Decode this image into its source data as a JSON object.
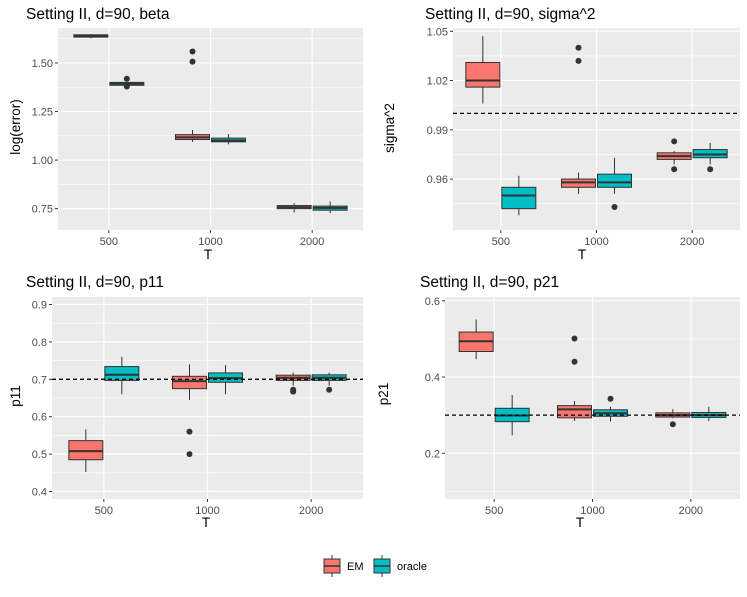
{
  "colors": {
    "EM": "#f8766d",
    "oracle": "#00bfc4",
    "panel_bg": "#ebebeb",
    "grid": "#ffffff",
    "box_line": "#333333"
  },
  "legend": {
    "position": "bottom",
    "entries": [
      {
        "key": "EM",
        "label": "EM"
      },
      {
        "key": "oracle",
        "label": "oracle"
      }
    ]
  },
  "chart_data": [
    {
      "type": "box",
      "title": "Setting II, d=90, beta",
      "xlabel": "T",
      "ylabel": "log(error)",
      "categories": [
        "500",
        "1000",
        "2000"
      ],
      "ylim": [
        0.64,
        1.68
      ],
      "yticks": [
        0.75,
        1.0,
        1.25,
        1.5
      ],
      "ytick_labels": [
        "0.75",
        "1.00",
        "1.25",
        "1.50"
      ],
      "reference_line": null,
      "grid": true,
      "series": [
        {
          "name": "EM",
          "boxes": [
            {
              "category": "500",
              "q1": 1.633,
              "median": 1.639,
              "q3": 1.645,
              "whisker_low": 1.627,
              "whisker_high": 1.648,
              "outliers": []
            },
            {
              "category": "1000",
              "q1": 1.106,
              "median": 1.117,
              "q3": 1.131,
              "whisker_low": 1.094,
              "whisker_high": 1.155,
              "outliers": [
                1.507,
                1.559
              ]
            },
            {
              "category": "2000",
              "q1": 0.75,
              "median": 0.757,
              "q3": 0.766,
              "whisker_low": 0.73,
              "whisker_high": 0.778,
              "outliers": []
            }
          ]
        },
        {
          "name": "oracle",
          "boxes": [
            {
              "category": "500",
              "q1": 1.385,
              "median": 1.393,
              "q3": 1.4,
              "whisker_low": 1.382,
              "whisker_high": 1.403,
              "outliers": [
                1.379,
                1.419
              ]
            },
            {
              "category": "1000",
              "q1": 1.094,
              "median": 1.101,
              "q3": 1.113,
              "whisker_low": 1.081,
              "whisker_high": 1.134,
              "outliers": []
            },
            {
              "category": "2000",
              "q1": 0.742,
              "median": 0.754,
              "q3": 0.763,
              "whisker_low": 0.727,
              "whisker_high": 0.787,
              "outliers": []
            }
          ]
        }
      ]
    },
    {
      "type": "box",
      "title": "Setting II, d=90, sigma^2",
      "xlabel": "T",
      "ylabel": "sigma^2",
      "categories": [
        "500",
        "1000",
        "2000"
      ],
      "ylim": [
        0.929,
        1.052
      ],
      "yticks": [
        0.96,
        0.99,
        1.02,
        1.05
      ],
      "ytick_labels": [
        "0.96",
        "0.99",
        "1.02",
        "1.05"
      ],
      "reference_line": 1.0,
      "grid": true,
      "series": [
        {
          "name": "EM",
          "boxes": [
            {
              "category": "500",
              "q1": 1.016,
              "median": 1.02,
              "q3": 1.031,
              "whisker_low": 1.006,
              "whisker_high": 1.047,
              "outliers": []
            },
            {
              "category": "1000",
              "q1": 0.955,
              "median": 0.958,
              "q3": 0.96,
              "whisker_low": 0.951,
              "whisker_high": 0.964,
              "outliers": [
                1.04,
                1.032
              ]
            },
            {
              "category": "2000",
              "q1": 0.972,
              "median": 0.974,
              "q3": 0.976,
              "whisker_low": 0.969,
              "whisker_high": 0.977,
              "outliers": [
                0.966,
                0.983
              ]
            }
          ]
        },
        {
          "name": "oracle",
          "boxes": [
            {
              "category": "500",
              "q1": 0.942,
              "median": 0.95,
              "q3": 0.955,
              "whisker_low": 0.938,
              "whisker_high": 0.962,
              "outliers": []
            },
            {
              "category": "1000",
              "q1": 0.955,
              "median": 0.958,
              "q3": 0.963,
              "whisker_low": 0.951,
              "whisker_high": 0.973,
              "outliers": [
                0.943
              ]
            },
            {
              "category": "2000",
              "q1": 0.973,
              "median": 0.975,
              "q3": 0.978,
              "whisker_low": 0.969,
              "whisker_high": 0.982,
              "outliers": [
                0.966
              ]
            }
          ]
        }
      ]
    },
    {
      "type": "box",
      "title": "Setting II, d=90, p11",
      "xlabel": "T",
      "ylabel": "p11",
      "categories": [
        "500",
        "1000",
        "2000"
      ],
      "ylim": [
        0.38,
        0.92
      ],
      "yticks": [
        0.4,
        0.5,
        0.6,
        0.7,
        0.8,
        0.9
      ],
      "ytick_labels": [
        "0.4",
        "0.5",
        "0.6",
        "0.7",
        "0.8",
        "0.9"
      ],
      "reference_line": 0.7,
      "grid": true,
      "series": [
        {
          "name": "EM",
          "boxes": [
            {
              "category": "500",
              "q1": 0.485,
              "median": 0.508,
              "q3": 0.536,
              "whisker_low": 0.452,
              "whisker_high": 0.566,
              "outliers": []
            },
            {
              "category": "1000",
              "q1": 0.675,
              "median": 0.695,
              "q3": 0.708,
              "whisker_low": 0.645,
              "whisker_high": 0.74,
              "outliers": [
                0.56,
                0.5
              ]
            },
            {
              "category": "2000",
              "q1": 0.697,
              "median": 0.704,
              "q3": 0.711,
              "whisker_low": 0.683,
              "whisker_high": 0.718,
              "outliers": [
                0.672,
                0.667
              ]
            }
          ]
        },
        {
          "name": "oracle",
          "boxes": [
            {
              "category": "500",
              "q1": 0.697,
              "median": 0.712,
              "q3": 0.734,
              "whisker_low": 0.66,
              "whisker_high": 0.76,
              "outliers": []
            },
            {
              "category": "1000",
              "q1": 0.692,
              "median": 0.703,
              "q3": 0.717,
              "whisker_low": 0.66,
              "whisker_high": 0.738,
              "outliers": []
            },
            {
              "category": "2000",
              "q1": 0.697,
              "median": 0.704,
              "q3": 0.712,
              "whisker_low": 0.683,
              "whisker_high": 0.718,
              "outliers": [
                0.672
              ]
            }
          ]
        }
      ]
    },
    {
      "type": "box",
      "title": "Setting II, d=90, p21",
      "xlabel": "T",
      "ylabel": "p21",
      "categories": [
        "500",
        "1000",
        "2000"
      ],
      "ylim": [
        0.08,
        0.61
      ],
      "yticks": [
        0.2,
        0.4,
        0.6
      ],
      "ytick_labels": [
        "0.2",
        "0.4",
        "0.6"
      ],
      "reference_line": 0.3,
      "grid": true,
      "series": [
        {
          "name": "EM",
          "boxes": [
            {
              "category": "500",
              "q1": 0.467,
              "median": 0.494,
              "q3": 0.518,
              "whisker_low": 0.447,
              "whisker_high": 0.551,
              "outliers": []
            },
            {
              "category": "1000",
              "q1": 0.293,
              "median": 0.315,
              "q3": 0.325,
              "whisker_low": 0.285,
              "whisker_high": 0.337,
              "outliers": [
                0.501,
                0.44
              ]
            },
            {
              "category": "2000",
              "q1": 0.295,
              "median": 0.3,
              "q3": 0.306,
              "whisker_low": 0.292,
              "whisker_high": 0.316,
              "outliers": [
                0.276
              ]
            }
          ]
        },
        {
          "name": "oracle",
          "boxes": [
            {
              "category": "500",
              "q1": 0.283,
              "median": 0.299,
              "q3": 0.318,
              "whisker_low": 0.247,
              "whisker_high": 0.353,
              "outliers": []
            },
            {
              "category": "1000",
              "q1": 0.297,
              "median": 0.305,
              "q3": 0.314,
              "whisker_low": 0.283,
              "whisker_high": 0.322,
              "outliers": [
                0.343
              ]
            },
            {
              "category": "2000",
              "q1": 0.294,
              "median": 0.3,
              "q3": 0.307,
              "whisker_low": 0.285,
              "whisker_high": 0.322,
              "outliers": []
            }
          ]
        }
      ]
    }
  ]
}
